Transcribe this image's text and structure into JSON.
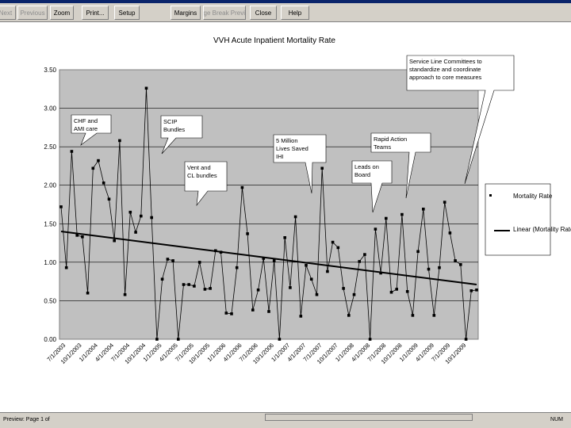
{
  "toolbar": {
    "buttons": [
      {
        "label": "Next",
        "enabled": false
      },
      {
        "label": "Previous",
        "enabled": false
      },
      {
        "label": "Zoom",
        "enabled": true
      },
      {
        "label": "Print...",
        "enabled": true
      },
      {
        "label": "Setup",
        "enabled": true
      },
      {
        "label": "Margins",
        "enabled": true
      },
      {
        "label": "Page Break Preview",
        "enabled": false
      },
      {
        "label": "Close",
        "enabled": true
      },
      {
        "label": "Help",
        "enabled": true
      }
    ]
  },
  "status": {
    "left": "Preview: Page 1 of",
    "right": "NUM"
  },
  "chart_data": {
    "type": "line",
    "title": "VVH Acute Inpatient Mortality Rate",
    "ylim": [
      0,
      3.5
    ],
    "yticks": [
      "0.00",
      "0.50",
      "1.00",
      "1.50",
      "2.00",
      "2.50",
      "3.00",
      "3.50"
    ],
    "xticks": [
      "7/1/2003",
      "10/1/2003",
      "1/1/2004",
      "4/1/2004",
      "7/1/2004",
      "10/1/2004",
      "1/1/2005",
      "4/1/2005",
      "7/1/2005",
      "10/1/2005",
      "1/1/2006",
      "4/1/2006",
      "7/1/2006",
      "10/1/2006",
      "1/1/2007",
      "4/1/2007",
      "7/1/2007",
      "10/1/2007",
      "1/1/2008",
      "4/1/2008",
      "7/1/2008",
      "10/1/2008",
      "1/1/2009",
      "4/1/2009",
      "7/1/2009",
      "10/1/2009"
    ],
    "series": [
      {
        "name": "Mortality Rate",
        "values": [
          1.72,
          0.93,
          2.44,
          1.35,
          1.33,
          0.6,
          2.22,
          2.32,
          2.03,
          1.82,
          1.28,
          2.58,
          0.58,
          1.65,
          1.39,
          1.6,
          3.26,
          1.58,
          0.0,
          0.78,
          1.04,
          1.02,
          0.0,
          0.71,
          0.71,
          0.69,
          1.0,
          0.65,
          0.66,
          1.15,
          1.13,
          0.34,
          0.33,
          0.93,
          1.97,
          1.37,
          0.38,
          0.64,
          1.05,
          0.36,
          1.02,
          0.0,
          1.32,
          0.67,
          1.59,
          0.3,
          0.96,
          0.78,
          0.58,
          2.22,
          0.88,
          1.26,
          1.19,
          0.66,
          0.31,
          0.58,
          1.01,
          1.1,
          0.0,
          1.43,
          0.86,
          1.57,
          0.61,
          0.65,
          1.62,
          0.62,
          0.31,
          1.14,
          1.69,
          0.91,
          0.31,
          0.93,
          1.78,
          1.38,
          1.02,
          0.97,
          0.0,
          0.63,
          0.64
        ]
      },
      {
        "name": "Linear (Mortality Rate)",
        "trend": [
          1.4,
          0.71
        ]
      }
    ],
    "legend": {
      "position": "right",
      "items": [
        "Mortality Rate",
        "Linear (Mortality Rate)"
      ]
    },
    "annotations": [
      "CHF and AMI care",
      "SCIP Bundles",
      "Vent and CL bundles",
      "5 Million Lives Saved IHI",
      "Leads on Board",
      "Rapid Action Teams",
      "Service Line Committees to standardize and coordinate approach to core measures"
    ],
    "grid": true
  }
}
